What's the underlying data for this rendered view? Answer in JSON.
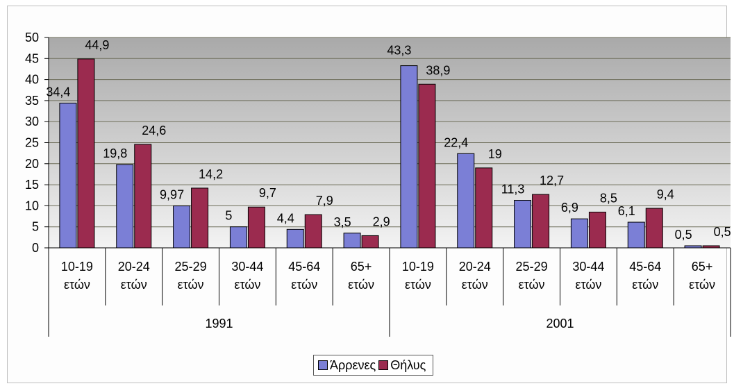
{
  "chart_data": {
    "type": "bar",
    "title": "",
    "xlabel": "",
    "ylabel": "",
    "ylim": [
      0,
      50
    ],
    "yticks": [
      0,
      5,
      10,
      15,
      20,
      25,
      30,
      35,
      40,
      45,
      50
    ],
    "grid": true,
    "legend_position": "bottom",
    "groups": [
      "1991",
      "2001"
    ],
    "categories": [
      "10-19 ετών",
      "20-24 ετών",
      "25-29 ετών",
      "30-44 ετών",
      "45-64 ετών",
      "65+ ετών",
      "10-19 ετών",
      "20-24 ετών",
      "25-29 ετών",
      "30-44 ετών",
      "45-64 ετών",
      "65+ ετών"
    ],
    "category_lines": [
      [
        "10-19",
        "ετών"
      ],
      [
        "20-24",
        "ετών"
      ],
      [
        "25-29",
        "ετών"
      ],
      [
        "30-44",
        "ετών"
      ],
      [
        "45-64",
        "ετών"
      ],
      [
        "65+",
        "ετών"
      ],
      [
        "10-19",
        "ετών"
      ],
      [
        "20-24",
        "ετών"
      ],
      [
        "25-29",
        "ετών"
      ],
      [
        "30-44",
        "ετών"
      ],
      [
        "45-64",
        "ετών"
      ],
      [
        "65+",
        "ετών"
      ]
    ],
    "series": [
      {
        "name": "Άρρενες",
        "color": "#7b7fd6",
        "values": [
          34.4,
          19.8,
          9.97,
          5,
          4.4,
          3.5,
          43.3,
          22.4,
          11.3,
          6.9,
          6.1,
          0.5
        ]
      },
      {
        "name": "Θήλυς",
        "color": "#9b2b4f",
        "values": [
          44.9,
          24.6,
          14.2,
          9.7,
          7.9,
          2.9,
          38.9,
          19,
          12.7,
          8.5,
          9.4,
          0.5
        ]
      }
    ],
    "data_labels": [
      [
        "34,4",
        "19,8",
        "9,97",
        "5",
        "4,4",
        "3,5",
        "43,3",
        "22,4",
        "11,3",
        "6,9",
        "6,1",
        "0,5"
      ],
      [
        "44,9",
        "24,6",
        "14,2",
        "9,7",
        "7,9",
        "2,9",
        "38,9",
        "19",
        "12,7",
        "8,5",
        "9,4",
        "0,5"
      ]
    ]
  },
  "colors": {
    "plot_top": "#a9a9a9",
    "plot_bottom": "#f3f3f3",
    "gridline": "#6e6e5a"
  }
}
